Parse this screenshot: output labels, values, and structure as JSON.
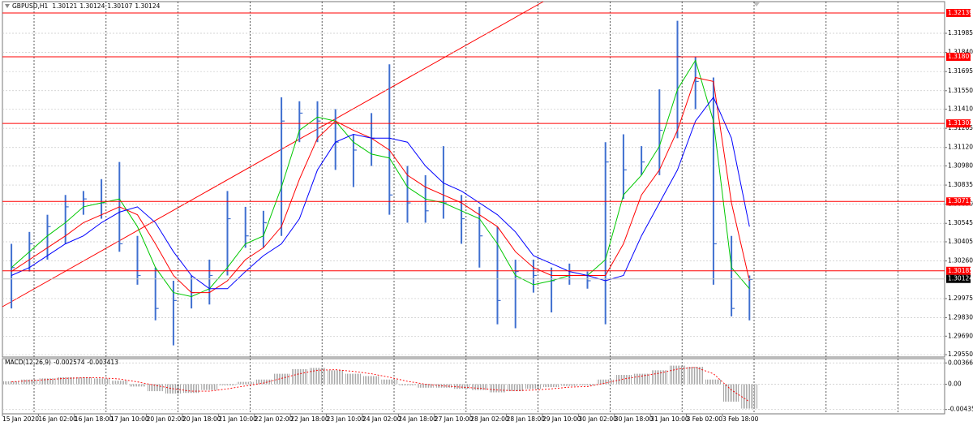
{
  "chart_data": [
    {
      "type": "ohlc",
      "title": "GBPUSD,H1",
      "quote": [
        1.30121,
        1.30124,
        1.30107,
        1.30124
      ],
      "categories": [
        "15 Jan 2020",
        null,
        "16 Jan 02:00",
        null,
        "16 Jan 18:00",
        null,
        "17 Jan 10:00",
        null,
        "20 Jan 02:00",
        null,
        "20 Jan 18:00",
        null,
        "21 Jan 10:00",
        null,
        "22 Jan 02:00",
        null,
        "22 Jan 18:00",
        null,
        "23 Jan 10:00",
        null,
        "24 Jan 02:00",
        null,
        "24 Jan 18:00",
        null,
        "27 Jan 10:00",
        null,
        "28 Jan 02:00",
        null,
        "28 Jan 18:00",
        null,
        "29 Jan 10:00",
        null,
        "30 Jan 02:00",
        null,
        "30 Jan 18:00",
        null,
        "31 Jan 10:00",
        null,
        "3 Feb 02:00",
        null,
        "3 Feb 18:00",
        null
      ],
      "color": "#3f6fd0",
      "high": [
        1.3039,
        1.3048,
        1.3061,
        1.3076,
        1.3079,
        1.3088,
        1.3101,
        1.3045,
        1.3021,
        1.3011,
        1.3015,
        1.3027,
        1.3079,
        1.3067,
        1.3064,
        1.315,
        1.3147,
        1.3147,
        1.3141,
        1.3122,
        1.3138,
        1.3175,
        1.3098,
        1.3091,
        1.3113,
        1.3076,
        1.3067,
        1.3052,
        1.3027,
        1.3027,
        1.3021,
        1.3024,
        1.3018,
        1.3116,
        1.3122,
        1.3113,
        1.3156,
        1.3208,
        1.3181,
        1.3165,
        1.3045,
        1.3015
      ],
      "low": [
        1.299,
        1.3018,
        1.3027,
        1.3039,
        1.3061,
        1.3058,
        1.3033,
        1.3008,
        1.2981,
        1.2962,
        1.299,
        1.2993,
        1.3015,
        1.3036,
        1.3036,
        1.3045,
        1.3116,
        1.3116,
        1.3095,
        1.3082,
        1.3098,
        1.3061,
        1.3055,
        1.3055,
        1.3058,
        1.3039,
        1.3021,
        1.2978,
        1.2975,
        1.3002,
        1.2987,
        1.3008,
        1.3005,
        1.2978,
        1.3073,
        1.3091,
        1.3091,
        1.3119,
        1.3141,
        1.3008,
        1.2984,
        1.2981
      ],
      "close": [
        1.3021,
        1.3039,
        1.3052,
        1.3067,
        1.3073,
        1.307,
        1.3039,
        1.3015,
        1.299,
        1.2996,
        1.3002,
        1.3015,
        1.3058,
        1.3045,
        1.3055,
        1.3132,
        1.3138,
        1.3132,
        1.3116,
        1.311,
        1.3119,
        1.3076,
        1.307,
        1.3064,
        1.307,
        1.3058,
        1.3045,
        1.2996,
        1.3018,
        1.3015,
        1.3011,
        1.3015,
        1.3011,
        1.3101,
        1.3095,
        1.3101,
        1.3125,
        1.3181,
        1.3162,
        1.3039,
        1.299,
        1.3012
      ],
      "ma": [
        {
          "color": "#00c800",
          "values": [
            1.3021,
            1.3033,
            1.3045,
            1.3055,
            1.3067,
            1.307,
            1.3073,
            1.3052,
            1.3021,
            1.3002,
            1.2999,
            1.3005,
            1.3021,
            1.3039,
            1.3045,
            1.3082,
            1.3125,
            1.3135,
            1.3132,
            1.3116,
            1.3107,
            1.3104,
            1.3082,
            1.3073,
            1.307,
            1.3064,
            1.3058,
            1.3039,
            1.3015,
            1.3008,
            1.3011,
            1.3015,
            1.3015,
            1.3027,
            1.3076,
            1.3091,
            1.3113,
            1.3156,
            1.3178,
            1.3132,
            1.3021,
            1.3005
          ]
        },
        {
          "color": "#ff0000",
          "values": [
            1.3018,
            1.3027,
            1.3036,
            1.3045,
            1.3055,
            1.3061,
            1.3067,
            1.3061,
            1.3039,
            1.3015,
            1.3002,
            1.3002,
            1.3011,
            1.3027,
            1.3036,
            1.3052,
            1.3088,
            1.3119,
            1.3132,
            1.3125,
            1.3119,
            1.311,
            1.3091,
            1.3082,
            1.3076,
            1.307,
            1.3061,
            1.3052,
            1.3033,
            1.3021,
            1.3015,
            1.3015,
            1.3015,
            1.3015,
            1.3039,
            1.3076,
            1.3095,
            1.3125,
            1.3165,
            1.3162,
            1.307,
            1.3011
          ]
        },
        {
          "color": "#0000ff",
          "values": [
            1.3015,
            1.3021,
            1.303,
            1.3039,
            1.3045,
            1.3055,
            1.3063,
            1.3067,
            1.3055,
            1.3033,
            1.3015,
            1.3005,
            1.3005,
            1.3018,
            1.303,
            1.3039,
            1.3058,
            1.3095,
            1.3116,
            1.3122,
            1.3119,
            1.3119,
            1.3116,
            1.3098,
            1.3085,
            1.3079,
            1.307,
            1.3061,
            1.3048,
            1.303,
            1.3024,
            1.3018,
            1.3015,
            1.3011,
            1.3015,
            1.3045,
            1.307,
            1.3095,
            1.3132,
            1.315,
            1.3119,
            1.3052
          ]
        }
      ],
      "ylim": [
        1.29532,
        1.32225
      ],
      "yticks": [
        {
          "value": 1.31985,
          "label": "1.31985"
        },
        {
          "value": 1.3184,
          "label": "1.31840"
        },
        {
          "value": 1.31695,
          "label": "1.31695"
        },
        {
          "value": 1.3155,
          "label": "1.31550"
        },
        {
          "value": 1.3141,
          "label": "1.31410"
        },
        {
          "value": 1.31265,
          "label": "1.31265"
        },
        {
          "value": 1.3112,
          "label": "1.31120"
        },
        {
          "value": 1.3098,
          "label": "1.30980"
        },
        {
          "value": 1.30835,
          "label": "1.30835"
        },
        {
          "value": 1.3069,
          "label": "1.30690"
        },
        {
          "value": 1.30545,
          "label": "1.30545"
        },
        {
          "value": 1.30405,
          "label": "1.30405"
        },
        {
          "value": 1.3026,
          "label": "1.30260"
        },
        {
          "value": 1.29975,
          "label": "1.29975"
        },
        {
          "value": 1.2983,
          "label": "1.29830"
        },
        {
          "value": 1.2969,
          "label": "1.29690"
        },
        {
          "value": 1.2955,
          "label": "1.29550"
        }
      ],
      "levels": [
        1.32139,
        1.31807,
        1.31302,
        1.30711,
        1.30185
      ],
      "level_color": "#ff0000",
      "current_price": 1.30124,
      "grid": true
    },
    {
      "type": "macd",
      "title": "MACD(12,26,9)",
      "indicator_values": [
        -0.002574,
        -0.003413
      ],
      "histogram": [
        0.0005,
        0.0008,
        0.001,
        0.0012,
        0.0012,
        0.001,
        0.0006,
        -0.0004,
        -0.0012,
        -0.0016,
        -0.0015,
        -0.001,
        -0.0002,
        0.0004,
        0.0008,
        0.0018,
        0.0026,
        0.0028,
        0.0024,
        0.0018,
        0.0014,
        0.0008,
        -0.0002,
        -0.0006,
        -0.0006,
        -0.0008,
        -0.001,
        -0.0014,
        -0.0012,
        -0.0008,
        -0.0005,
        -0.0003,
        -0.0002,
        0.0008,
        0.0016,
        0.0018,
        0.0024,
        0.0032,
        0.003,
        0.0008,
        -0.003,
        -0.0042
      ],
      "signal": [
        0.0004,
        0.0006,
        0.0008,
        0.001,
        0.0011,
        0.0011,
        0.0009,
        0.0004,
        -0.0002,
        -0.0008,
        -0.0012,
        -0.0012,
        -0.0008,
        -0.0003,
        0.0002,
        0.001,
        0.0018,
        0.0024,
        0.0025,
        0.0022,
        0.0018,
        0.0012,
        0.0005,
        0.0,
        -0.0003,
        -0.0005,
        -0.0007,
        -0.001,
        -0.0011,
        -0.001,
        -0.0008,
        -0.0005,
        -0.0004,
        0.0002,
        0.0009,
        0.0014,
        0.0019,
        0.0026,
        0.0029,
        0.0018,
        -0.001,
        -0.003
      ],
      "histogram_color": "#a8a8a8",
      "signal_color": "#ff0000",
      "ylim": [
        -0.0051,
        0.0044
      ],
      "yticks": [
        0.003662,
        {
          "value": 0,
          "label": "0.00"
        },
        -0.004358
      ]
    }
  ]
}
